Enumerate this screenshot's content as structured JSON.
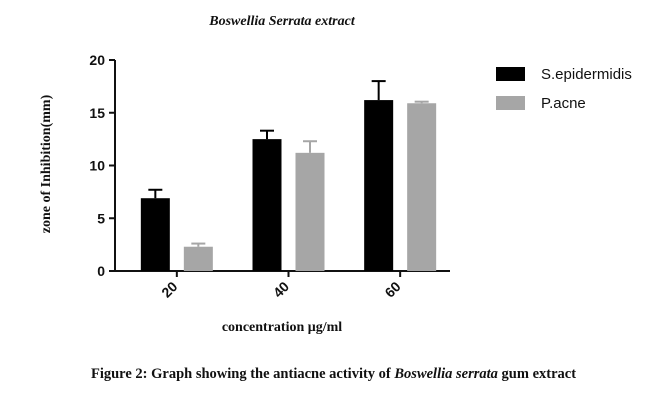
{
  "chart_data": {
    "type": "bar",
    "title": "Boswellia Serrata extract",
    "xlabel": "concentration μg/ml",
    "ylabel": "zone of Inhibition(mm)",
    "categories": [
      "20",
      "40",
      "60"
    ],
    "ylim": [
      0,
      20
    ],
    "yticks": [
      "0",
      "5",
      "10",
      "15",
      "20"
    ],
    "series": [
      {
        "name": "S.epidermidis",
        "color": "#000000",
        "values": [
          6.9,
          12.5,
          16.2
        ],
        "errors": [
          0.8,
          0.8,
          1.8
        ]
      },
      {
        "name": "P.acne",
        "color": "#a6a6a6",
        "values": [
          2.3,
          11.2,
          15.9
        ],
        "errors": [
          0.3,
          1.1,
          0.15
        ]
      }
    ],
    "grid": false,
    "legend_position": "top-right"
  },
  "caption": {
    "prefix": "Figure 2: Graph showing the antiacne activity of ",
    "italic": "Boswellia serrata",
    "suffix": " gum extract"
  }
}
